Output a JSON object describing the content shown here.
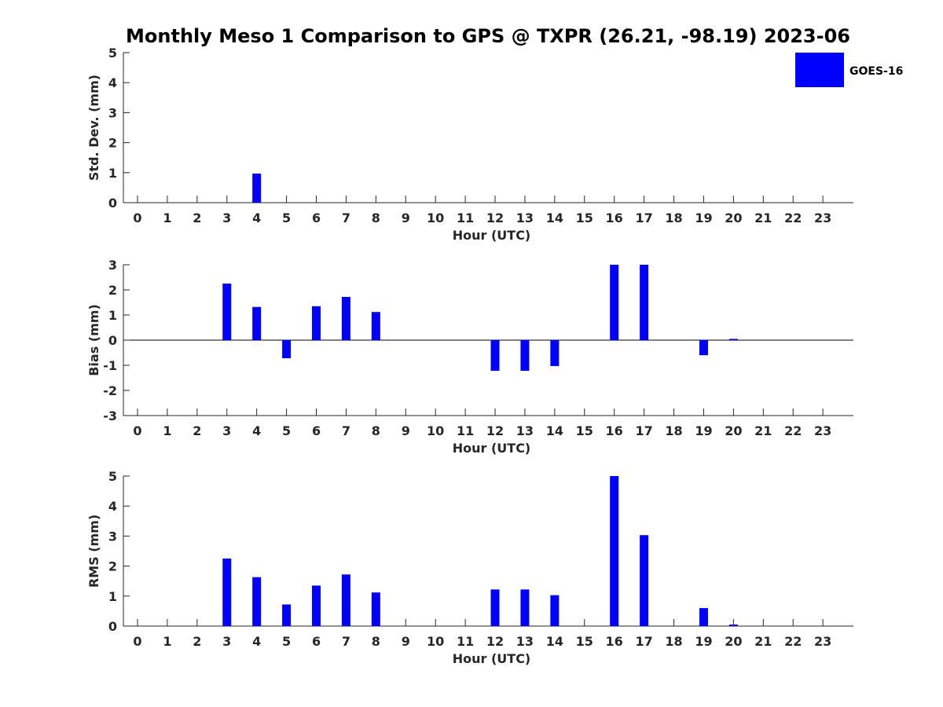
{
  "title": "Monthly Meso 1 Comparison to GPS @ TXPR (26.21, -98.19) 2023-06",
  "legend": {
    "label": "GOES-16",
    "position": "top-right"
  },
  "colors": {
    "bar": "#0000ff",
    "axis": "#262626"
  },
  "chart_data": [
    {
      "type": "bar",
      "name": "std_dev",
      "series_name": "GOES-16",
      "xlabel": "Hour (UTC)",
      "ylabel": "Std. Dev. (mm)",
      "ylim": [
        0,
        5
      ],
      "yticks": [
        0,
        1,
        2,
        3,
        4,
        5
      ],
      "categories": [
        "0",
        "1",
        "2",
        "3",
        "4",
        "5",
        "6",
        "7",
        "8",
        "9",
        "10",
        "11",
        "12",
        "13",
        "14",
        "15",
        "16",
        "17",
        "18",
        "19",
        "20",
        "21",
        "22",
        "23"
      ],
      "values": [
        0,
        0,
        0,
        0,
        0.97,
        0,
        0,
        0,
        0,
        0,
        0,
        0,
        0,
        0,
        0,
        0,
        0,
        0,
        0,
        0,
        0,
        0,
        0,
        0
      ]
    },
    {
      "type": "bar",
      "name": "bias",
      "series_name": "GOES-16",
      "xlabel": "Hour (UTC)",
      "ylabel": "Bias (mm)",
      "ylim": [
        -3,
        3
      ],
      "yticks": [
        -3,
        -2,
        -1,
        0,
        1,
        2,
        3
      ],
      "zero_line": true,
      "categories": [
        "0",
        "1",
        "2",
        "3",
        "4",
        "5",
        "6",
        "7",
        "8",
        "9",
        "10",
        "11",
        "12",
        "13",
        "14",
        "15",
        "16",
        "17",
        "18",
        "19",
        "20",
        "21",
        "22",
        "23"
      ],
      "values": [
        0,
        0,
        0,
        2.25,
        1.32,
        -0.72,
        1.35,
        1.72,
        1.12,
        0,
        0,
        0,
        -1.22,
        -1.22,
        -1.03,
        0,
        3.0,
        3.0,
        0,
        -0.6,
        0.05,
        0,
        0,
        0
      ]
    },
    {
      "type": "bar",
      "name": "rms",
      "series_name": "GOES-16",
      "xlabel": "Hour (UTC)",
      "ylabel": "RMS (mm)",
      "ylim": [
        0,
        5
      ],
      "yticks": [
        0,
        1,
        2,
        3,
        4,
        5
      ],
      "categories": [
        "0",
        "1",
        "2",
        "3",
        "4",
        "5",
        "6",
        "7",
        "8",
        "9",
        "10",
        "11",
        "12",
        "13",
        "14",
        "15",
        "16",
        "17",
        "18",
        "19",
        "20",
        "21",
        "22",
        "23"
      ],
      "values": [
        0,
        0,
        0,
        2.25,
        1.63,
        0.72,
        1.35,
        1.72,
        1.12,
        0,
        0,
        0,
        1.22,
        1.22,
        1.03,
        0,
        5.0,
        3.03,
        0,
        0.6,
        0.05,
        0,
        0,
        0
      ]
    }
  ]
}
